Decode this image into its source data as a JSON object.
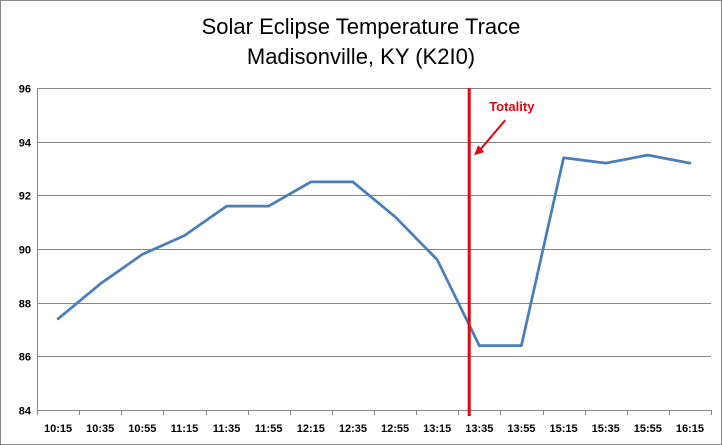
{
  "chart_data": {
    "type": "line",
    "title": "Solar Eclipse Temperature Trace",
    "subtitle": "Madisonville, KY (K2I0)",
    "xlabel": "",
    "ylabel": "",
    "categories": [
      "10:15",
      "10:35",
      "10:55",
      "11:15",
      "11:35",
      "11:55",
      "12:15",
      "12:35",
      "12:55",
      "13:15",
      "13:35",
      "13:55",
      "15:15",
      "15:35",
      "15:55",
      "16:15"
    ],
    "series": [
      {
        "values": [
          87.4,
          88.7,
          89.8,
          90.5,
          91.6,
          91.6,
          92.5,
          92.5,
          91.2,
          89.6,
          86.4,
          86.4,
          93.4,
          93.2,
          93.5,
          93.2
        ]
      }
    ],
    "ylim": [
      84,
      96
    ],
    "yticks": [
      84,
      86,
      88,
      90,
      92,
      94,
      96
    ],
    "grid": true,
    "legend": "none",
    "line_color": "#4A7EBB",
    "marker": {
      "after_category": "13:15",
      "label": "Totality",
      "color": "#E30613"
    }
  }
}
